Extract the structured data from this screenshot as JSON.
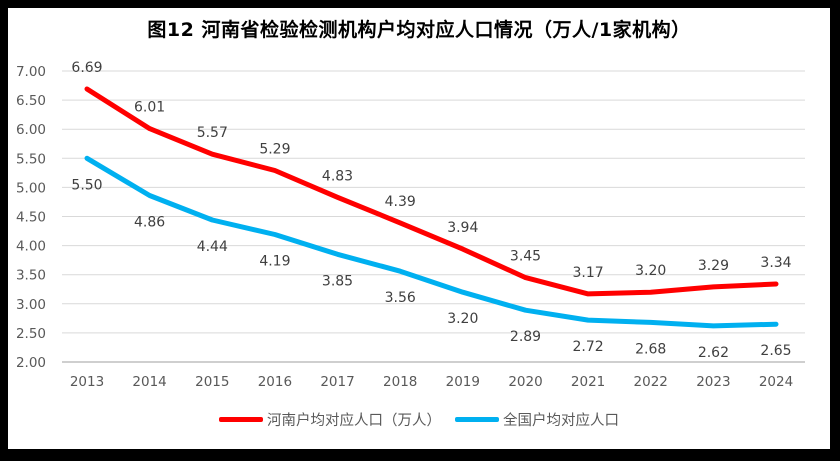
{
  "chart_data": {
    "type": "line",
    "title": "图12  河南省检验检测机构户均对应人口情况（万人/1家机构）",
    "categories": [
      "2013",
      "2014",
      "2015",
      "2016",
      "2017",
      "2018",
      "2019",
      "2020",
      "2021",
      "2022",
      "2023",
      "2024"
    ],
    "series": [
      {
        "name": "河南户均对应人口（万人）",
        "color": "#FF0000",
        "label_position": "above",
        "values": [
          6.69,
          6.01,
          5.57,
          5.29,
          4.83,
          4.39,
          3.94,
          3.45,
          3.17,
          3.2,
          3.29,
          3.34
        ]
      },
      {
        "name": "全国户均对应人口",
        "color": "#00B0F0",
        "label_position": "below",
        "values": [
          5.5,
          4.86,
          4.44,
          4.19,
          3.85,
          3.56,
          3.2,
          2.89,
          2.72,
          2.68,
          2.62,
          2.65
        ]
      }
    ],
    "y_ticks": [
      "7.00",
      "6.50",
      "6.00",
      "5.50",
      "5.00",
      "4.50",
      "4.00",
      "3.50",
      "3.00",
      "2.50",
      "2.00"
    ],
    "ylim": [
      2.0,
      7.0
    ],
    "y_step": 0.5,
    "xlabel": "",
    "ylabel": "",
    "grid": true,
    "legend_position": "bottom",
    "colors": {
      "grid": "#D9D9D9",
      "axis": "#BFBFBF",
      "data_label": "#404040",
      "tick_label": "#595959",
      "title": "#000000",
      "frame_border": "#000000",
      "background": "#FFFFFF"
    }
  }
}
